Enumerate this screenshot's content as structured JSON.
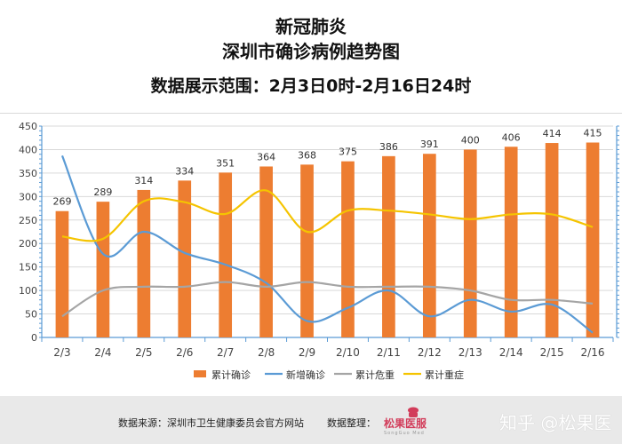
{
  "header": {
    "title_line1": "新冠肺炎",
    "title_line2": "深圳市确诊病例趋势图",
    "title_line3": "数据展示范围：2月3日0时-2月16日24时"
  },
  "footer": {
    "source_text": "数据来源：深圳市卫生健康委员会官方网站",
    "organizer_text": "数据整理：",
    "logo_text": "松果医服",
    "logo_subtext": "SongGuo Med",
    "watermark_text": "知乎 @松果医"
  },
  "colors": {
    "cumulative_confirmed": "#ed7d31",
    "new_confirmed": "#5b9bd5",
    "cumulative_critical": "#a5a5a5",
    "cumulative_severe": "#f5c400"
  },
  "chart_data": {
    "type": "bar",
    "categories": [
      "2/3",
      "2/4",
      "2/5",
      "2/6",
      "2/7",
      "2/8",
      "2/9",
      "2/10",
      "2/11",
      "2/12",
      "2/13",
      "2/14",
      "2/15",
      "2/16"
    ],
    "ylim": [
      0,
      450
    ],
    "yticks": [
      0,
      50,
      100,
      150,
      200,
      250,
      300,
      350,
      400,
      450
    ],
    "grid": true,
    "legend_position": "bottom",
    "series": [
      {
        "name": "累计确诊",
        "type": "bar",
        "values": [
          269,
          289,
          314,
          334,
          351,
          364,
          368,
          375,
          386,
          391,
          400,
          406,
          414,
          415
        ],
        "show_labels": true
      },
      {
        "name": "新增确诊",
        "type": "line",
        "values": [
          387,
          178,
          225,
          180,
          155,
          116,
          35,
          63,
          100,
          45,
          80,
          55,
          70,
          10
        ]
      },
      {
        "name": "累计危重",
        "type": "line",
        "values": [
          45,
          100,
          108,
          108,
          118,
          108,
          118,
          108,
          108,
          108,
          100,
          80,
          80,
          72
        ]
      },
      {
        "name": "累计重症",
        "type": "line",
        "values": [
          215,
          210,
          290,
          288,
          263,
          313,
          225,
          270,
          270,
          262,
          252,
          262,
          262,
          235
        ]
      }
    ]
  }
}
